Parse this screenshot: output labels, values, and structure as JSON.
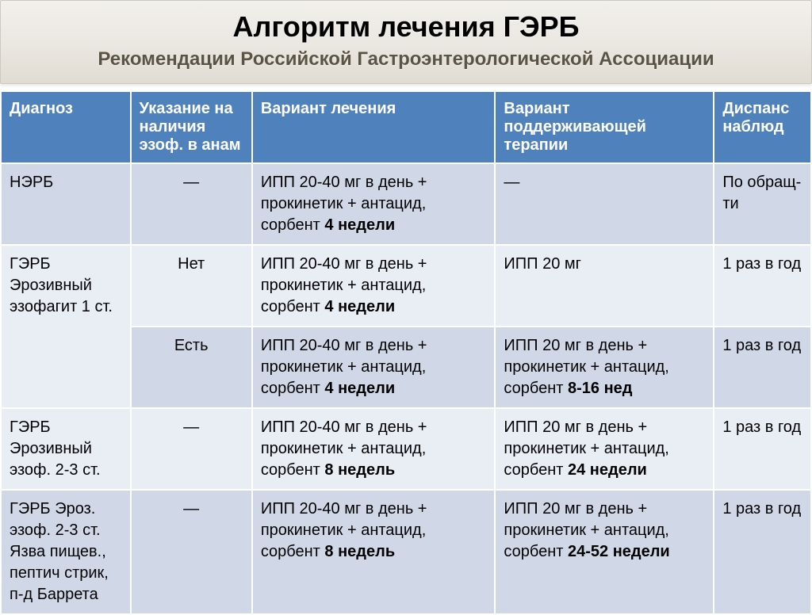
{
  "header": {
    "title": "Алгоритм лечения ГЭРБ",
    "subtitle": "Рекомендации Российской Гастроэнтерологической Ассоциации"
  },
  "table": {
    "columns": [
      "Диагноз",
      "Указание на наличия эзоф. в анам",
      "Вариант лечения",
      "Вариант поддерживающей терапии",
      "Диспанс наблюд"
    ],
    "rows": [
      {
        "diag": "НЭРБ",
        "anam": "—",
        "treat_pre": "ИПП 20-40 мг в день + прокинетик + антацид, сорбент ",
        "treat_bold": "4 недели",
        "maint_pre": "—",
        "maint_bold": "",
        "disp": "По обращ-ти"
      },
      {
        "diag": "ГЭРБ Эрозивный эзофагит 1 ст.",
        "anam": "Нет",
        "treat_pre": "ИПП 20-40 мг в день + прокинетик + антацид, сорбент ",
        "treat_bold": "4 недели",
        "maint_pre": "ИПП 20 мг",
        "maint_bold": "",
        "disp": "1 раз в год"
      },
      {
        "diag": "",
        "anam": "Есть",
        "treat_pre": "ИПП 20-40 мг в день + прокинетик + антацид, сорбент ",
        "treat_bold": "4 недели",
        "maint_pre": "ИПП 20 мг в день + прокинетик + антацид, сорбент ",
        "maint_bold": "8-16 нед",
        "disp": "1 раз в год"
      },
      {
        "diag": "ГЭРБ Эрозивный эзоф. 2-3 ст.",
        "anam": "—",
        "treat_pre": "ИПП 20-40 мг в день + прокинетик + антацид, сорбент ",
        "treat_bold": "8 недель",
        "maint_pre": "ИПП 20 мг в день + прокинетик + антацид, сорбент ",
        "maint_bold": "24 недели",
        "disp": "1 раз в год"
      },
      {
        "diag": "ГЭРБ Эроз. эзоф. 2-3 ст. Язва пищев., пептич стрик, п-д Баррета",
        "anam": "—",
        "treat_pre": "ИПП 20-40 мг в день + прокинетик + антацид, сорбент ",
        "treat_bold": "8 недель",
        "maint_pre": "ИПП 20 мг в день + прокинетик + антацид, сорбент ",
        "maint_bold": "24-52 недели",
        "disp": "1 раз в год"
      }
    ],
    "rowspans": {
      "1": 2
    },
    "row_shade": [
      "even",
      "odd",
      "even",
      "odd",
      "even"
    ]
  },
  "colors": {
    "header_bg": "#4f81bd",
    "row_even": "#d0d8e8",
    "row_odd": "#e9edf4"
  }
}
